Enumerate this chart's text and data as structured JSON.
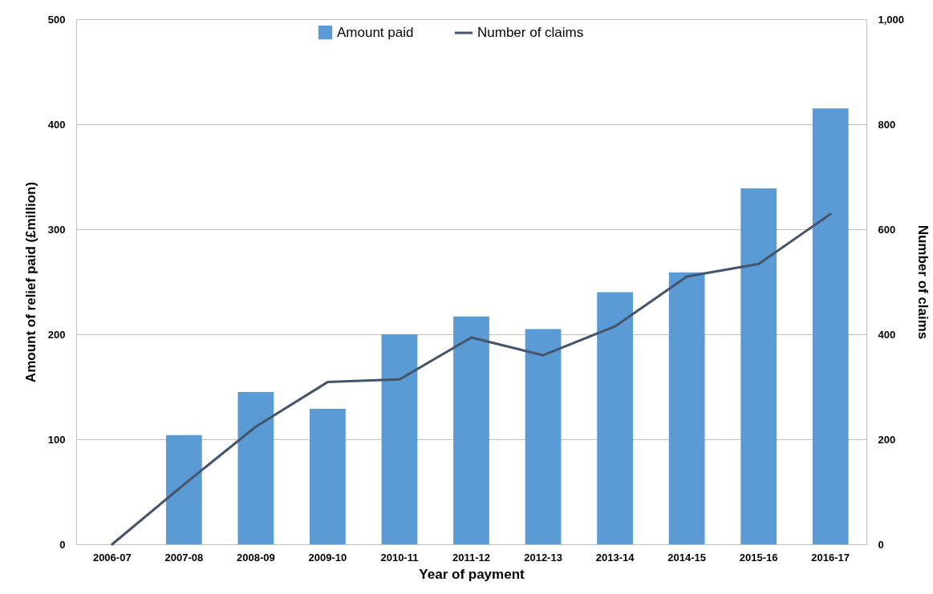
{
  "chart_data": {
    "type": "bar",
    "categories": [
      "2006-07",
      "2007-08",
      "2008-09",
      "2009-10",
      "2010-11",
      "2011-12",
      "2012-13",
      "2013-14",
      "2014-15",
      "2015-16",
      "2016-17"
    ],
    "series": [
      {
        "name": "Amount paid",
        "color": "#5b9bd5",
        "values": [
          0,
          104,
          145,
          129,
          200,
          217,
          205,
          240,
          259,
          339,
          415
        ]
      },
      {
        "name": "Number of claims",
        "type": "line",
        "axis": "y2",
        "color": "#44546a",
        "values": [
          0,
          114,
          224,
          309,
          314,
          394,
          360,
          415,
          510,
          534,
          629
        ]
      }
    ],
    "xlabel": "Year of payment",
    "ylabel": "Amount of relief paid (£million)",
    "y2label": "Number of claims",
    "ylim": [
      0,
      500
    ],
    "yticks": [
      0,
      100,
      200,
      300,
      400,
      500
    ],
    "y2lim": [
      0,
      1000
    ],
    "y2ticks": [
      0,
      200,
      400,
      600,
      800,
      {
        "value": 1000,
        "label": "1,000"
      }
    ],
    "grid": "y",
    "legend": "top",
    "line_style": "solid"
  }
}
